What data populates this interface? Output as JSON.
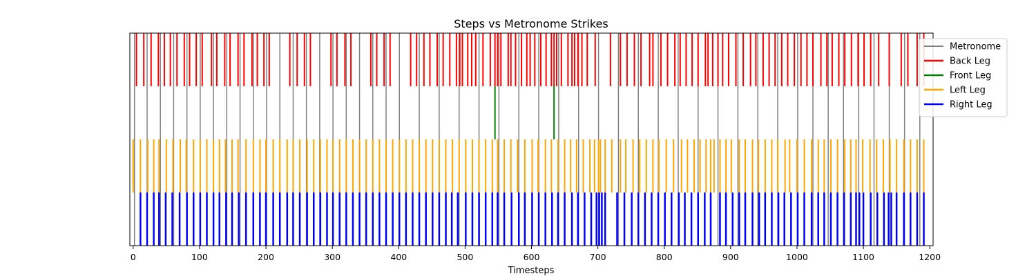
{
  "chart_data": {
    "type": "event_raster",
    "title": "Steps vs Metronome Strikes",
    "xlabel": "Timesteps",
    "ylabel": "",
    "xlim": [
      -5,
      1205
    ],
    "xticks": [
      0,
      100,
      200,
      300,
      400,
      500,
      600,
      700,
      800,
      900,
      1000,
      1100,
      1200
    ],
    "legend_position": "top-right, outside plot",
    "grid": false,
    "series": [
      {
        "name": "Metronome",
        "color": "#808080",
        "band": "full",
        "events": [
          2,
          21,
          41,
          61,
          81,
          101,
          121,
          141,
          161,
          181,
          201,
          221,
          241,
          261,
          281,
          301,
          321,
          341,
          361,
          381,
          401,
          431,
          461,
          491,
          521,
          551,
          581,
          611,
          641,
          671,
          701,
          731,
          761,
          791,
          821,
          851,
          881,
          911,
          941,
          971,
          1001,
          1024,
          1047,
          1070,
          1093,
          1116,
          1139,
          1162,
          1185
        ]
      },
      {
        "name": "Back Leg",
        "color": "#ff0000",
        "band": "top",
        "events": [
          5,
          16,
          27,
          38,
          47,
          56,
          66,
          77,
          85,
          95,
          104,
          118,
          126,
          138,
          146,
          158,
          167,
          179,
          187,
          197,
          205,
          236,
          247,
          258,
          267,
          298,
          307,
          319,
          328,
          358,
          367,
          378,
          387,
          418,
          427,
          438,
          447,
          458,
          467,
          477,
          487,
          492,
          496,
          504,
          510,
          516,
          527,
          538,
          545,
          549,
          554,
          565,
          569,
          576,
          585,
          593,
          598,
          605,
          614,
          622,
          630,
          634,
          638,
          645,
          655,
          661,
          665,
          670,
          676,
          684,
          696,
          719,
          734,
          744,
          755,
          765,
          778,
          783,
          795,
          805,
          816,
          824,
          833,
          842,
          851,
          862,
          866,
          873,
          881,
          888,
          897,
          908,
          919,
          930,
          938,
          949,
          958,
          967,
          977,
          986,
          996,
          1006,
          1015,
          1024,
          1036,
          1045,
          1053,
          1063,
          1072,
          1082,
          1092,
          1101,
          1111,
          1123,
          1139,
          1157,
          1167,
          1181,
          1191
        ]
      },
      {
        "name": "Front Leg",
        "color": "#008000",
        "band": "middle",
        "events": [
          545,
          634
        ]
      },
      {
        "name": "Left Leg",
        "color": "#ffa500",
        "band": "lower-middle",
        "events": [
          0,
          11,
          22,
          31,
          39,
          50,
          60,
          71,
          80,
          91,
          101,
          111,
          121,
          130,
          139,
          149,
          158,
          170,
          181,
          191,
          200,
          211,
          221,
          232,
          241,
          251,
          262,
          272,
          282,
          292,
          301,
          311,
          321,
          331,
          341,
          351,
          361,
          371,
          381,
          391,
          401,
          411,
          421,
          431,
          441,
          451,
          461,
          471,
          481,
          491,
          501,
          511,
          521,
          531,
          541,
          549,
          559,
          569,
          579,
          590,
          601,
          610,
          621,
          630,
          640,
          650,
          659,
          668,
          678,
          688,
          695,
          701,
          704,
          711,
          721,
          734,
          742,
          753,
          763,
          773,
          783,
          792,
          803,
          814,
          826,
          835,
          845,
          854,
          863,
          870,
          875,
          884,
          893,
          901,
          913,
          922,
          933,
          942,
          952,
          962,
          971,
          982,
          989,
          1000,
          1011,
          1022,
          1032,
          1041,
          1051,
          1061,
          1072,
          1081,
          1089,
          1099,
          1110,
          1120,
          1130,
          1140,
          1150,
          1161,
          1171,
          1181,
          1191
        ]
      },
      {
        "name": "Right Leg",
        "color": "#0000ff",
        "band": "bottom",
        "events": [
          11,
          21,
          31,
          39,
          49,
          59,
          70,
          81,
          91,
          101,
          111,
          121,
          130,
          140,
          149,
          159,
          170,
          181,
          191,
          200,
          211,
          221,
          232,
          241,
          251,
          262,
          272,
          282,
          292,
          301,
          311,
          321,
          331,
          341,
          351,
          361,
          371,
          381,
          391,
          401,
          411,
          421,
          431,
          441,
          451,
          461,
          471,
          480,
          489,
          501,
          511,
          521,
          531,
          541,
          549,
          559,
          570,
          581,
          590,
          601,
          611,
          621,
          631,
          640,
          650,
          661,
          670,
          680,
          690,
          698,
          702,
          706,
          711,
          729,
          740,
          751,
          761,
          771,
          781,
          791,
          801,
          811,
          822,
          831,
          841,
          851,
          861,
          870,
          884,
          893,
          903,
          913,
          922,
          933,
          943,
          952,
          962,
          972,
          981,
          991,
          1001,
          1011,
          1022,
          1032,
          1041,
          1051,
          1061,
          1071,
          1081,
          1089,
          1094,
          1100,
          1111,
          1121,
          1131,
          1138,
          1142,
          1150,
          1161,
          1171,
          1181,
          1191
        ]
      }
    ]
  }
}
